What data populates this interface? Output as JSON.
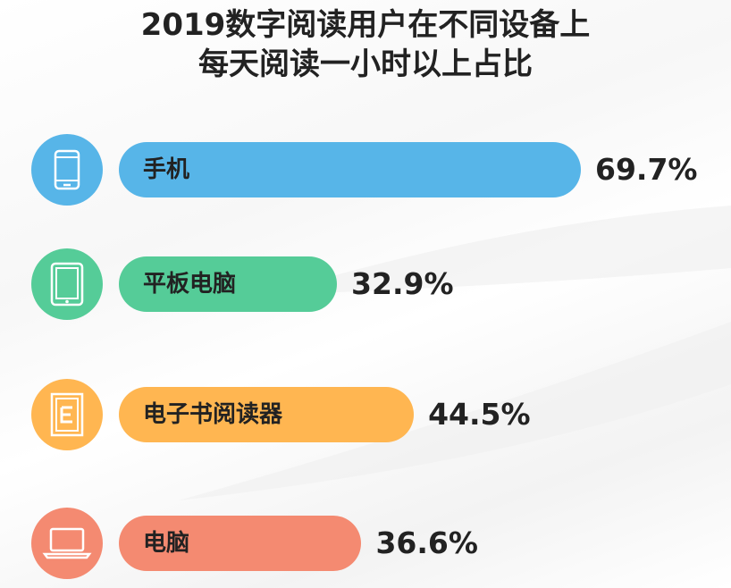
{
  "chart_data": {
    "type": "bar",
    "orientation": "horizontal",
    "title": "2019数字阅读用户在不同设备上每天阅读一小时以上占比",
    "title_lines": [
      "2019数字阅读用户在不同设备上",
      "每天阅读一小时以上占比"
    ],
    "categories": [
      "手机",
      "平板电脑",
      "电子书阅读器",
      "电脑"
    ],
    "values": [
      69.7,
      32.9,
      44.5,
      36.6
    ],
    "value_labels": [
      "69.7%",
      "32.9%",
      "44.5%",
      "36.6%"
    ],
    "unit": "%",
    "colors": [
      "#57b5e8",
      "#55cc98",
      "#ffb651",
      "#f48a71"
    ],
    "icons": [
      "phone-icon",
      "tablet-icon",
      "ebook-reader-icon",
      "laptop-icon"
    ],
    "xlim": [
      0,
      69.7
    ],
    "grid": false,
    "legend": "none"
  }
}
